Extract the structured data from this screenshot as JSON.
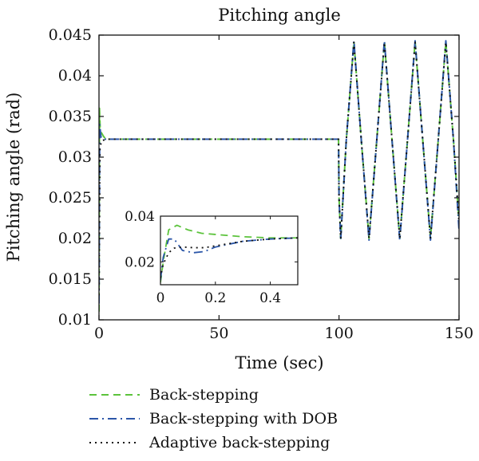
{
  "chart_data": {
    "type": "line",
    "title": "Pitching angle",
    "xlabel": "Time (sec)",
    "ylabel": "Pitching angle (rad)",
    "xlim": [
      0,
      150
    ],
    "ylim": [
      0.01,
      0.045
    ],
    "xticks": [
      "0",
      "50",
      "100",
      "150"
    ],
    "yticks": [
      "0.01",
      "0.015",
      "0.02",
      "0.025",
      "0.03",
      "0.035",
      "0.04",
      "0.045"
    ],
    "grid": false,
    "legend_position": "bottom",
    "series": [
      {
        "name": "Back-stepping",
        "color": "#5cc33c",
        "dash": "dashed",
        "x": [
          0,
          0.2,
          0.5,
          1,
          2,
          3,
          5,
          10,
          99.8,
          100,
          100.7,
          103,
          106.2,
          109.3,
          112.5,
          115.7,
          118.9,
          122.1,
          125.3,
          128.5,
          131.7,
          134.9,
          138.1,
          141.3,
          144.5,
          147.7,
          150
        ],
        "y": [
          0.011,
          0.036,
          0.0335,
          0.033,
          0.0325,
          0.0322,
          0.0322,
          0.0322,
          0.0322,
          0.025,
          0.02,
          0.032,
          0.0442,
          0.032,
          0.02,
          0.032,
          0.0442,
          0.032,
          0.02,
          0.032,
          0.0442,
          0.032,
          0.02,
          0.032,
          0.0442,
          0.032,
          0.022
        ]
      },
      {
        "name": "Back-stepping with DOB",
        "color": "#2b56a8",
        "dash": "dashdot",
        "x": [
          0,
          0.3,
          0.8,
          1.5,
          3,
          5,
          10,
          99.8,
          100,
          100.7,
          103,
          106.2,
          109.3,
          112.5,
          115.7,
          118.9,
          122.1,
          125.3,
          128.5,
          131.7,
          134.9,
          138.1,
          141.3,
          144.5,
          147.7,
          150
        ],
        "y": [
          0.012,
          0.034,
          0.0325,
          0.0322,
          0.0322,
          0.0322,
          0.0322,
          0.0322,
          0.025,
          0.0198,
          0.032,
          0.0443,
          0.032,
          0.0198,
          0.032,
          0.0443,
          0.032,
          0.0198,
          0.032,
          0.0443,
          0.032,
          0.0198,
          0.032,
          0.0443,
          0.032,
          0.021
        ]
      },
      {
        "name": "Adaptive back-stepping",
        "color": "#111111",
        "dash": "dotted",
        "x": [
          0,
          0.4,
          1,
          2,
          3,
          5,
          10,
          99.8,
          100,
          100.7,
          103,
          106.2,
          109.3,
          112.5,
          115.7,
          118.9,
          122.1,
          125.3,
          128.5,
          131.7,
          134.9,
          138.1,
          141.3,
          144.5,
          147.7,
          150
        ],
        "y": [
          0.013,
          0.031,
          0.032,
          0.0321,
          0.0322,
          0.0322,
          0.0322,
          0.0322,
          0.025,
          0.02,
          0.032,
          0.0441,
          0.032,
          0.02,
          0.032,
          0.0441,
          0.032,
          0.02,
          0.032,
          0.0441,
          0.032,
          0.02,
          0.032,
          0.0441,
          0.032,
          0.022
        ]
      }
    ],
    "inset": {
      "xlim": [
        0,
        0.5
      ],
      "ylim": [
        0.01,
        0.04
      ],
      "xticks": [
        "0",
        "0.2",
        "0.4"
      ],
      "yticks": [
        "0.02",
        "0.04"
      ],
      "series": [
        {
          "name": "Back-stepping",
          "x": [
            0,
            0.01,
            0.03,
            0.06,
            0.1,
            0.15,
            0.2,
            0.3,
            0.4,
            0.5
          ],
          "y": [
            0.011,
            0.02,
            0.034,
            0.036,
            0.034,
            0.0325,
            0.032,
            0.031,
            0.0305,
            0.0305
          ]
        },
        {
          "name": "Back-stepping with DOB",
          "x": [
            0,
            0.01,
            0.03,
            0.05,
            0.08,
            0.12,
            0.16,
            0.2,
            0.3,
            0.4,
            0.5
          ],
          "y": [
            0.012,
            0.022,
            0.03,
            0.03,
            0.025,
            0.024,
            0.0245,
            0.0265,
            0.029,
            0.03,
            0.0305
          ]
        },
        {
          "name": "Adaptive back-stepping",
          "x": [
            0,
            0.01,
            0.03,
            0.05,
            0.08,
            0.12,
            0.16,
            0.2,
            0.3,
            0.4,
            0.5
          ],
          "y": [
            0.013,
            0.019,
            0.024,
            0.026,
            0.0265,
            0.0262,
            0.0262,
            0.027,
            0.029,
            0.03,
            0.0305
          ]
        }
      ]
    }
  }
}
